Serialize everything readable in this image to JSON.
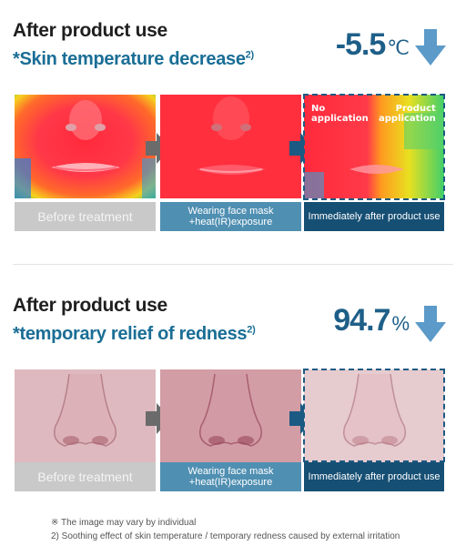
{
  "section1": {
    "title": "After product use",
    "subtitle": "*Skin temperature decrease",
    "subtitle_sup": "2)",
    "stat_value": "-5.5",
    "stat_unit": "℃",
    "overlay_left": "No\napplication",
    "overlay_right": "Product\napplication",
    "captions": [
      "Before treatment",
      "Wearing face mask\n+heat(IR)exposure",
      "Immediately after product use"
    ]
  },
  "section2": {
    "title": "After product use",
    "subtitle": "*temporary relief of redness",
    "subtitle_sup": "2)",
    "stat_value": "94.7",
    "stat_unit": "%",
    "captions": [
      "Before treatment",
      "Wearing face mask\n+heat(IR)exposure",
      "Immediately after product use"
    ]
  },
  "notes": [
    "※ The image may vary by individual",
    "2) Soothing effect of skin temperature / temporary redness caused by external irritation"
  ],
  "colors": {
    "accent_dark": "#164f74",
    "accent_mid": "#4f8fb2",
    "arrow": "#5b9ac9",
    "caption_gray": "#c9c9c9"
  }
}
